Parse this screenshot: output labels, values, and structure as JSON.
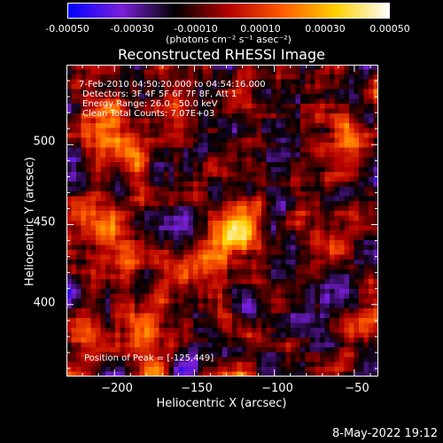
{
  "colorbar": {
    "tick_labels": [
      "-0.00050",
      "-0.00030",
      "-0.00010",
      "0.00010",
      "0.00030",
      "0.00050"
    ],
    "units": "(photons cm⁻² s⁻¹ asec⁻²)",
    "range": [
      -0.0005,
      0.0005
    ],
    "colors": [
      "#0000ff",
      "#7a1fd8",
      "#000000",
      "#b40000",
      "#ff5a00",
      "#ffd000",
      "#ffffff"
    ]
  },
  "annotations": {
    "time_range": "7-Feb-2010 04:50:20.000 to 04:54:16.000",
    "detectors": "Detectors: 3F 4F 5F 6F 7F 8F, Att 1",
    "energy": "Energy Range: 26.0 - 50.0 keV",
    "clean": "Clean     Total Counts: 7.07E+03",
    "peak": "Position of Peak = [-125,449]"
  },
  "footer": {
    "date": "8-May-2022 19:12"
  },
  "chart_data": {
    "type": "heatmap",
    "title": "Reconstructed RHESSI Image",
    "xlabel": "Heliocentric X (arcsec)",
    "ylabel": "Heliocentric Y (arcsec)",
    "xlim": [
      -230,
      -35
    ],
    "ylim": [
      355,
      550
    ],
    "xticks": [
      -200,
      -150,
      -100,
      -50
    ],
    "xtick_labels": [
      "−200",
      "−150",
      "−100",
      "−50"
    ],
    "yticks": [
      400,
      450,
      500
    ],
    "ytick_labels": [
      "400",
      "450",
      "500"
    ],
    "peak": [
      -125,
      449
    ],
    "sources": [
      {
        "x": -125,
        "y": 449,
        "intensity": 0.0005
      },
      {
        "x": -190,
        "y": 500,
        "intensity": 0.00032
      },
      {
        "x": -205,
        "y": 520,
        "intensity": 0.00028
      },
      {
        "x": -55,
        "y": 505,
        "intensity": 0.0003
      },
      {
        "x": -185,
        "y": 385,
        "intensity": 0.00026
      },
      {
        "x": -210,
        "y": 455,
        "intensity": 0.0002
      },
      {
        "x": -145,
        "y": 425,
        "intensity": 0.00018
      },
      {
        "x": -95,
        "y": 365,
        "intensity": 0.00016
      },
      {
        "x": -45,
        "y": 360,
        "intensity": 0.00012
      },
      {
        "x": -225,
        "y": 380,
        "intensity": 0.0002
      }
    ]
  }
}
